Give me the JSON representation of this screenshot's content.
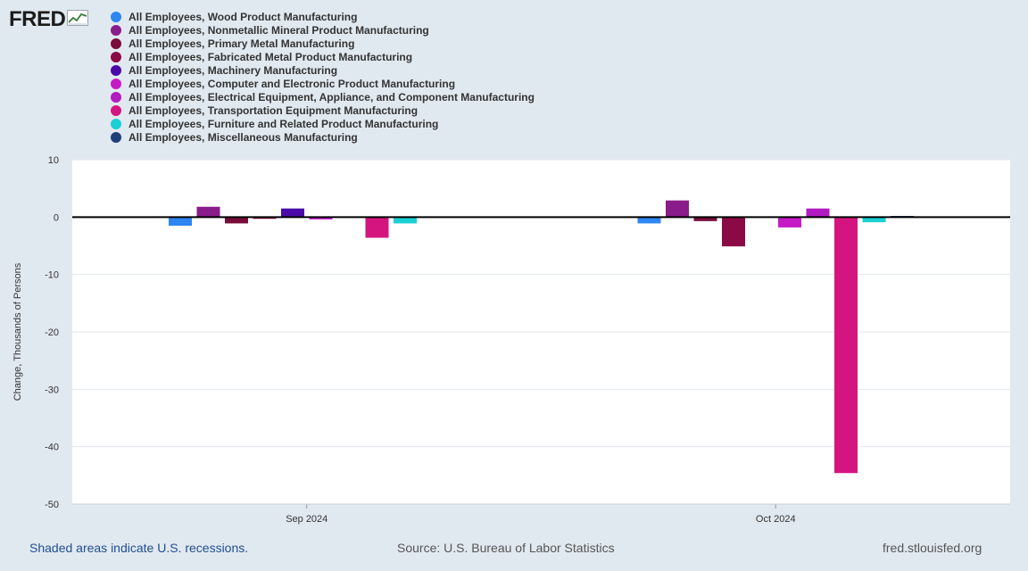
{
  "header": {
    "logo_text": "FRED",
    "logo_icon": "line-graph-icon"
  },
  "legend": [
    {
      "label": "All Employees, Wood Product Manufacturing",
      "color": "#2e86f2"
    },
    {
      "label": "All Employees, Nonmetallic Mineral Product Manufacturing",
      "color": "#8a1b8a"
    },
    {
      "label": "All Employees, Primary Metal Manufacturing",
      "color": "#7a0c3c"
    },
    {
      "label": "All Employees, Fabricated Metal Product Manufacturing",
      "color": "#8b0a45"
    },
    {
      "label": "All Employees, Machinery Manufacturing",
      "color": "#4a0aa8"
    },
    {
      "label": "All Employees, Computer and Electronic Product Manufacturing",
      "color": "#c61ac6"
    },
    {
      "label": "All Employees, Electrical Equipment, Appliance, and Component Manufacturing",
      "color": "#b21bc2"
    },
    {
      "label": "All Employees, Transportation Equipment Manufacturing",
      "color": "#d4157f"
    },
    {
      "label": "All Employees, Furniture and Related Product Manufacturing",
      "color": "#1bd0d3"
    },
    {
      "label": "All Employees, Miscellaneous Manufacturing",
      "color": "#1f3f7a"
    }
  ],
  "chart_data": {
    "type": "bar",
    "categories": [
      "Sep 2024",
      "Oct 2024"
    ],
    "ylabel": "Change, Thousands of Persons",
    "ylim": [
      -50,
      10
    ],
    "yticks": [
      10,
      0,
      -10,
      -20,
      -30,
      -40,
      -50
    ],
    "grid": true,
    "legend_position": "top-left",
    "series": [
      {
        "name": "All Employees, Wood Product Manufacturing",
        "values": [
          -1.5,
          -1.1
        ]
      },
      {
        "name": "All Employees, Nonmetallic Mineral Product Manufacturing",
        "values": [
          1.8,
          2.9
        ]
      },
      {
        "name": "All Employees, Primary Metal Manufacturing",
        "values": [
          -1.1,
          -0.7
        ]
      },
      {
        "name": "All Employees, Fabricated Metal Product Manufacturing",
        "values": [
          -0.3,
          -5.1
        ]
      },
      {
        "name": "All Employees, Machinery Manufacturing",
        "values": [
          1.5,
          0.0
        ]
      },
      {
        "name": "All Employees, Computer and Electronic Product Manufacturing",
        "values": [
          -0.4,
          -1.8
        ]
      },
      {
        "name": "All Employees, Electrical Equipment, Appliance, and Component Manufacturing",
        "values": [
          0.0,
          1.5
        ]
      },
      {
        "name": "All Employees, Transportation Equipment Manufacturing",
        "values": [
          -3.6,
          -44.6
        ]
      },
      {
        "name": "All Employees, Furniture and Related Product Manufacturing",
        "values": [
          -1.1,
          -0.9
        ]
      },
      {
        "name": "All Employees, Miscellaneous Manufacturing",
        "values": [
          0.0,
          0.2
        ]
      }
    ]
  },
  "footer": {
    "recessions_note": "Shaded areas indicate U.S. recessions.",
    "source": "Source: U.S. Bureau of Labor Statistics",
    "site": "fred.stlouisfed.org"
  }
}
